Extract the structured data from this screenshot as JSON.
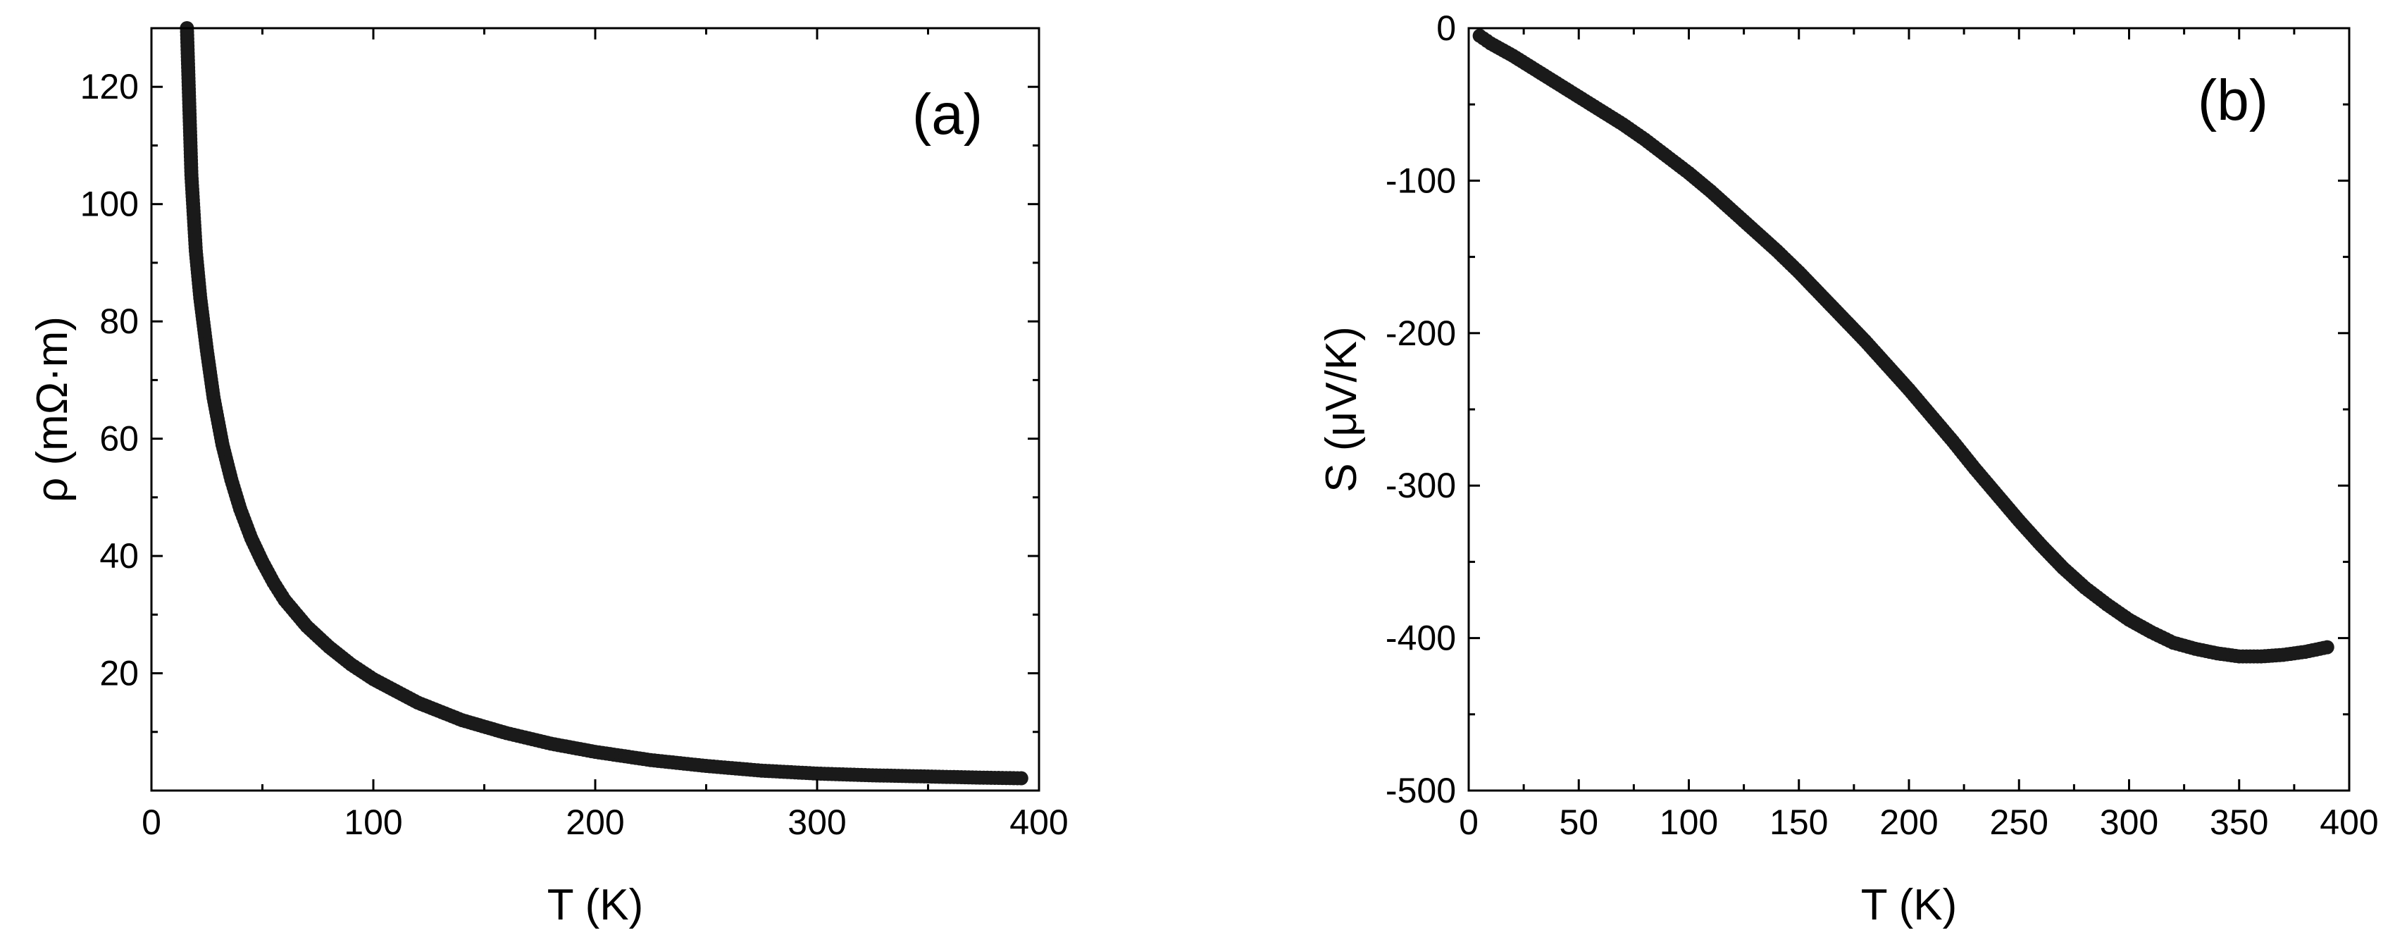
{
  "figure": {
    "background": "#ffffff",
    "marker_color": "#1a1a1a"
  },
  "chart_data": [
    {
      "id": "panel-a",
      "type": "scatter",
      "panel_label": "(a)",
      "xlabel": "T (K)",
      "ylabel": "ρ (mΩ·m)",
      "xlim": [
        0,
        400
      ],
      "ylim": [
        0,
        130
      ],
      "xticks": [
        0,
        100,
        200,
        300,
        400
      ],
      "yticks": [
        20,
        40,
        60,
        80,
        100,
        120
      ],
      "x_minor_step": 50,
      "y_minor_step": 10,
      "grid": false,
      "series": [
        {
          "x": [
            16,
            18,
            20,
            22,
            25,
            28,
            32,
            36,
            40,
            45,
            50,
            55,
            60,
            70,
            80,
            90,
            100,
            110,
            120,
            140,
            160,
            180,
            200,
            225,
            250,
            275,
            300,
            325,
            350,
            375,
            392
          ],
          "values": [
            130,
            105,
            92,
            84,
            75,
            67,
            59,
            53,
            48,
            43,
            39,
            35.5,
            32.5,
            28,
            24.5,
            21.5,
            19,
            17,
            15,
            12,
            9.8,
            8,
            6.6,
            5.2,
            4.2,
            3.4,
            2.9,
            2.6,
            2.4,
            2.2,
            2.1
          ]
        }
      ]
    },
    {
      "id": "panel-b",
      "type": "scatter",
      "panel_label": "(b)",
      "xlabel": "T (K)",
      "ylabel": "S (μV/K)",
      "xlim": [
        0,
        400
      ],
      "ylim": [
        -500,
        0
      ],
      "xticks": [
        0,
        50,
        100,
        150,
        200,
        250,
        300,
        350,
        400
      ],
      "yticks": [
        0,
        -100,
        -200,
        -300,
        -400,
        -500
      ],
      "x_minor_step": 25,
      "y_minor_step": 50,
      "grid": false,
      "series": [
        {
          "x": [
            5,
            10,
            20,
            30,
            40,
            50,
            60,
            70,
            80,
            90,
            100,
            110,
            120,
            130,
            140,
            150,
            160,
            170,
            180,
            190,
            200,
            210,
            220,
            230,
            240,
            250,
            260,
            270,
            280,
            290,
            300,
            310,
            320,
            330,
            340,
            350,
            360,
            370,
            380,
            390
          ],
          "values": [
            -5,
            -10,
            -18,
            -27,
            -36,
            -45,
            -54,
            -63,
            -73,
            -84,
            -95,
            -107,
            -120,
            -133,
            -146,
            -160,
            -175,
            -190,
            -205,
            -221,
            -237,
            -254,
            -271,
            -289,
            -306,
            -323,
            -339,
            -354,
            -367,
            -378,
            -388,
            -396,
            -403,
            -407,
            -410,
            -412,
            -412,
            -411,
            -409,
            -406
          ]
        }
      ]
    }
  ]
}
